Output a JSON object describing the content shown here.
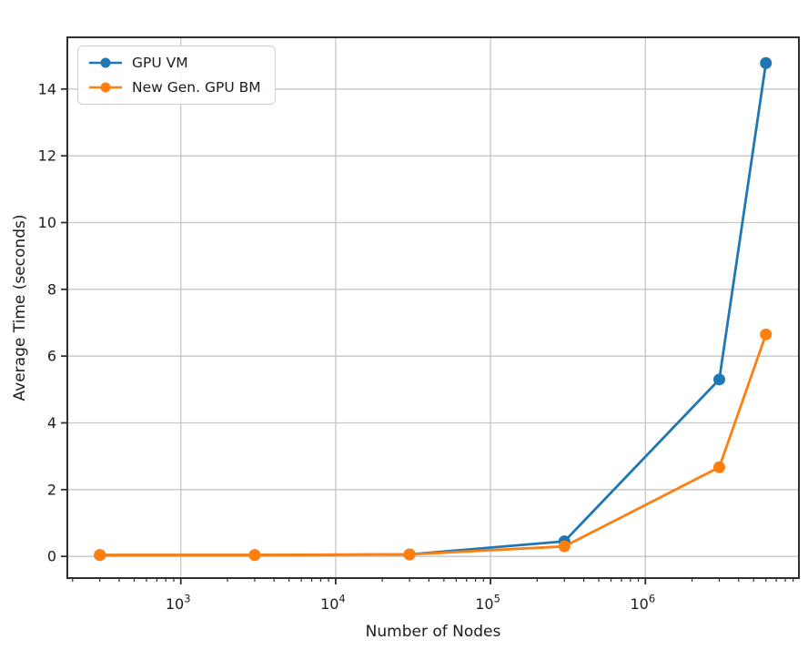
{
  "chart_data": {
    "type": "line",
    "title": "",
    "xlabel": "Number of Nodes",
    "ylabel": "Average Time (seconds)",
    "x_scale": "log",
    "grid": true,
    "legend_position": "upper left",
    "x": [
      300,
      3000,
      30000,
      300000,
      3000000,
      6000000
    ],
    "series": [
      {
        "name": "GPU VM",
        "color": "#1f77b4",
        "values": [
          0.04,
          0.04,
          0.06,
          0.45,
          5.3,
          14.78
        ]
      },
      {
        "name": "New Gen. GPU BM",
        "color": "#ff7f0e",
        "values": [
          0.04,
          0.04,
          0.06,
          0.3,
          2.67,
          6.65
        ]
      }
    ],
    "xlim": [
      185,
      9800000
    ],
    "ylim": [
      -0.65,
      15.55
    ],
    "x_ticks": [
      {
        "value": 1000,
        "base": "10",
        "exp": "3"
      },
      {
        "value": 10000,
        "base": "10",
        "exp": "4"
      },
      {
        "value": 100000,
        "base": "10",
        "exp": "5"
      },
      {
        "value": 1000000,
        "base": "10",
        "exp": "6"
      }
    ],
    "y_ticks": [
      "0",
      "2",
      "4",
      "6",
      "8",
      "10",
      "12",
      "14"
    ],
    "colors": {
      "grid": "#c6c6c6",
      "spine": "#2e2e2e",
      "tick": "#2e2e2e",
      "text": "#1c1c1c"
    }
  }
}
